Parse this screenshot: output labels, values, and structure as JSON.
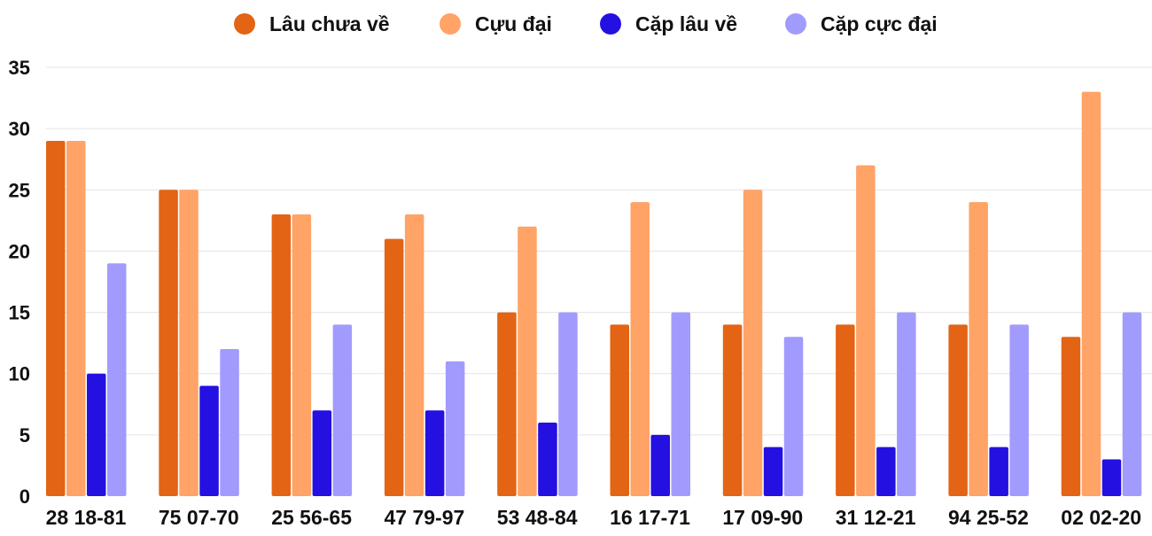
{
  "chart_data": {
    "type": "bar",
    "title": "",
    "xlabel": "",
    "ylabel": "",
    "ylim": [
      0,
      35
    ],
    "yticks": [
      0,
      5,
      10,
      15,
      20,
      25,
      30,
      35
    ],
    "grid": true,
    "legend_position": "top",
    "categories": [
      "28 18-81",
      "75 07-70",
      "25 56-65",
      "47 79-97",
      "53 48-84",
      "16 17-71",
      "17 09-90",
      "31 12-21",
      "94 25-52",
      "02 02-20"
    ],
    "series": [
      {
        "name": "Lâu chưa về",
        "color": "#E36414",
        "values": [
          29,
          25,
          23,
          21,
          15,
          14,
          14,
          14,
          14,
          13
        ]
      },
      {
        "name": "Cựu đại",
        "color": "#FFA366",
        "values": [
          29,
          25,
          23,
          23,
          22,
          24,
          25,
          27,
          24,
          33
        ]
      },
      {
        "name": "Cặp lâu về",
        "color": "#2410E0",
        "values": [
          10,
          9,
          7,
          7,
          6,
          5,
          4,
          4,
          4,
          3
        ]
      },
      {
        "name": "Cặp cực đại",
        "color": "#A29BFE",
        "values": [
          19,
          12,
          14,
          11,
          15,
          15,
          13,
          15,
          14,
          15
        ]
      }
    ]
  }
}
